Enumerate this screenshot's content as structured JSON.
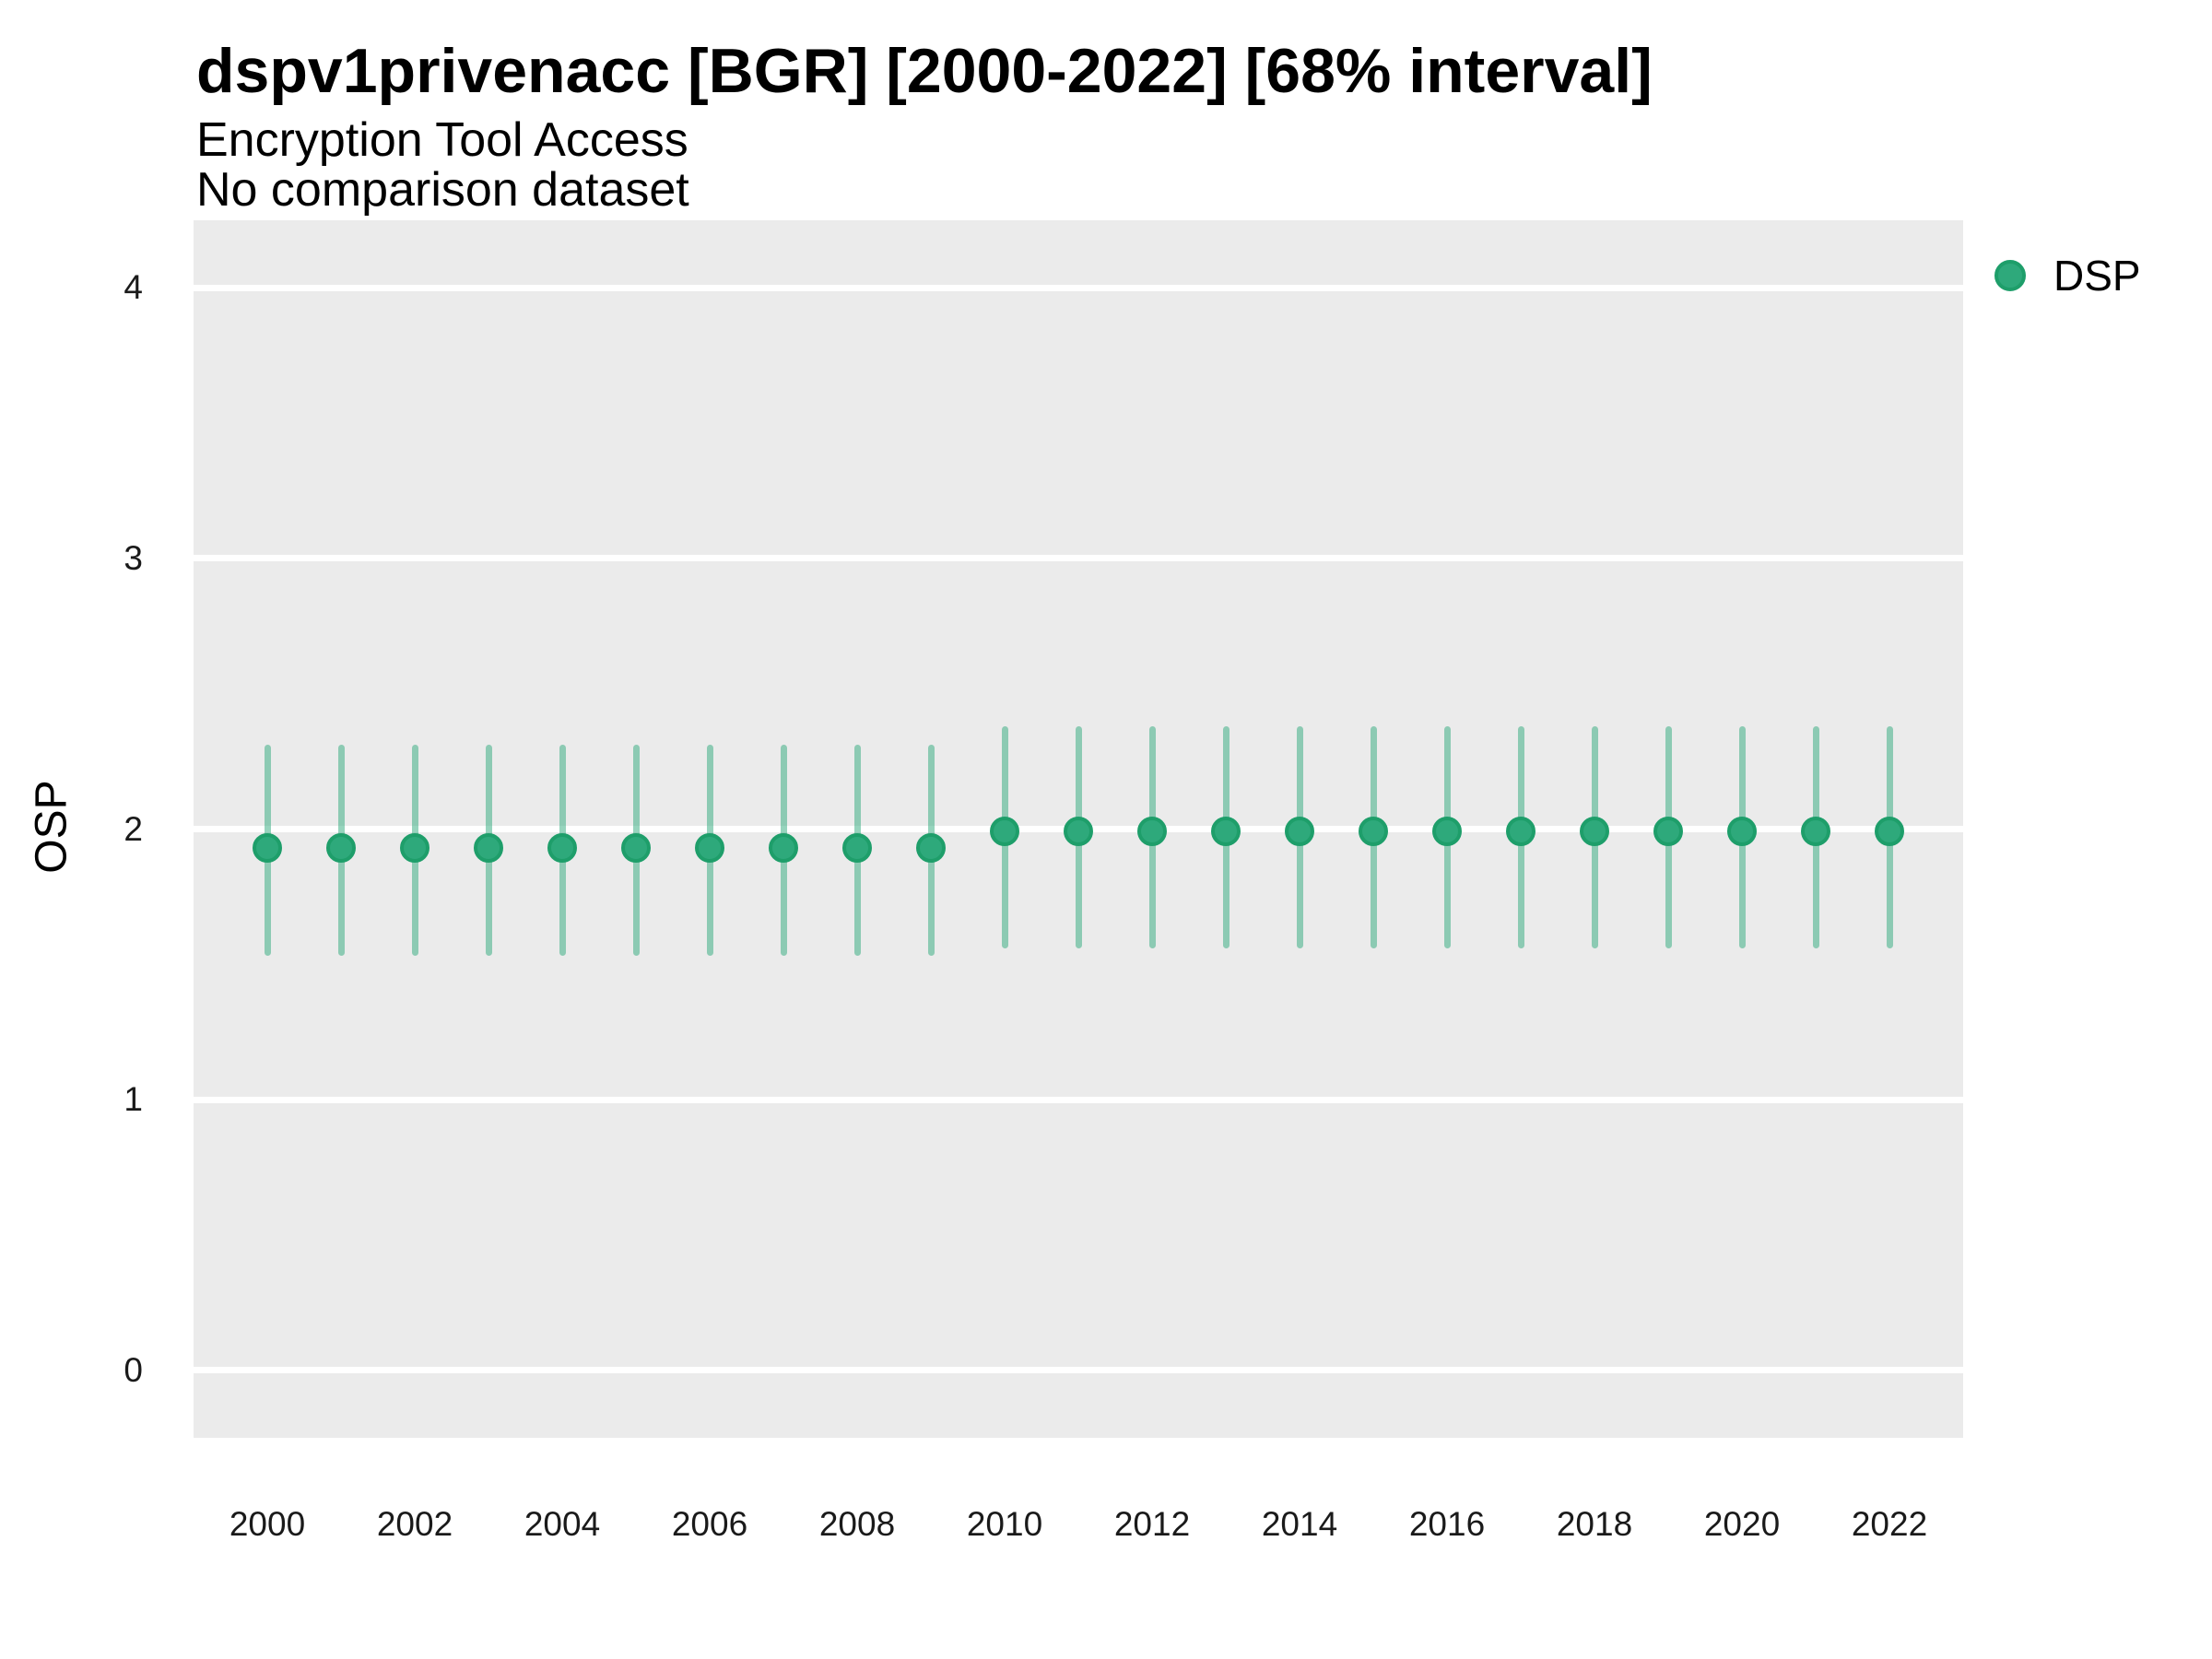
{
  "header": {
    "title": "dspv1privenacc [BGR] [2000-2022] [68% interval]",
    "subtitle": "Encryption Tool Access",
    "note": "No comparison dataset"
  },
  "y_axis": {
    "label": "OSP",
    "ticks": [
      0,
      1,
      2,
      3,
      4
    ]
  },
  "x_axis": {
    "tick_labels": [
      2000,
      2002,
      2004,
      2006,
      2008,
      2010,
      2012,
      2014,
      2016,
      2018,
      2020,
      2022
    ]
  },
  "legend": {
    "position": "right",
    "items": [
      {
        "label": "DSP",
        "color": "#2EA97B",
        "border_color": "#1E9E6A"
      }
    ]
  },
  "colors": {
    "plot_background": "#EBEBEB",
    "gridline": "#FFFFFF",
    "point_fill": "#2EA97B",
    "point_border": "#1E9E6A",
    "interval_bar": "rgba(46,169,123,0.5)",
    "text": "#000000",
    "tick_text": "#1A1A1A"
  },
  "chart_data": {
    "type": "pointrange",
    "title": "dspv1privenacc [BGR] [2000-2022] [68% interval]",
    "subtitle": "Encryption Tool Access",
    "annotation": "No comparison dataset",
    "xlabel": "",
    "ylabel": "OSP",
    "interval": "68%",
    "grid": "major horizontal white lines on gray panel",
    "legend_position": "right",
    "xlim": [
      1999,
      2023
    ],
    "ylim": [
      -0.25,
      4.25
    ],
    "x": [
      2000,
      2001,
      2002,
      2003,
      2004,
      2005,
      2006,
      2007,
      2008,
      2009,
      2010,
      2011,
      2012,
      2013,
      2014,
      2015,
      2016,
      2017,
      2018,
      2019,
      2020,
      2021,
      2022
    ],
    "series": [
      {
        "name": "DSP",
        "values": [
          1.93,
          1.93,
          1.93,
          1.93,
          1.93,
          1.93,
          1.93,
          1.93,
          1.93,
          1.93,
          1.99,
          1.99,
          1.99,
          1.99,
          1.99,
          1.99,
          1.99,
          1.99,
          1.99,
          1.99,
          1.99,
          1.99,
          1.99
        ],
        "lower_68": [
          1.53,
          1.53,
          1.53,
          1.53,
          1.53,
          1.53,
          1.53,
          1.53,
          1.53,
          1.53,
          1.56,
          1.56,
          1.56,
          1.56,
          1.56,
          1.56,
          1.56,
          1.56,
          1.56,
          1.56,
          1.56,
          1.56,
          1.56
        ],
        "upper_68": [
          2.31,
          2.31,
          2.31,
          2.31,
          2.31,
          2.31,
          2.31,
          2.31,
          2.31,
          2.31,
          2.38,
          2.38,
          2.38,
          2.38,
          2.38,
          2.38,
          2.38,
          2.38,
          2.38,
          2.38,
          2.38,
          2.38,
          2.38
        ]
      }
    ]
  }
}
